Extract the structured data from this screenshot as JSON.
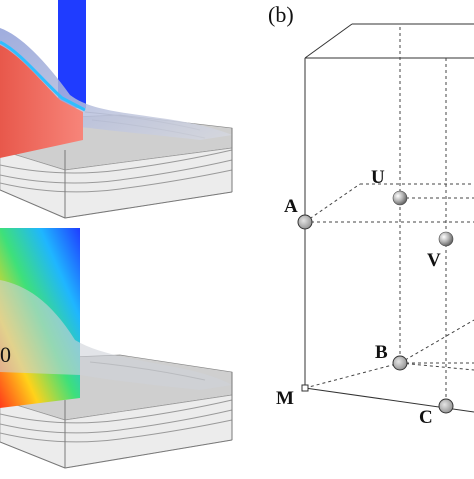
{
  "panel_b": {
    "label": "(b)",
    "points": {
      "A": "A",
      "B": "B",
      "C": "C",
      "M": "M",
      "U": "U",
      "V": "V"
    }
  },
  "panel_a": {
    "lower_label": "0",
    "top_colors": [
      "#f06a5e",
      "#1f3cff",
      "#b8c2d8"
    ],
    "bottom_colors": [
      "#ff3a1a",
      "#ffd21a",
      "#3ee07a",
      "#1fb6ff",
      "#1f3cff"
    ]
  }
}
